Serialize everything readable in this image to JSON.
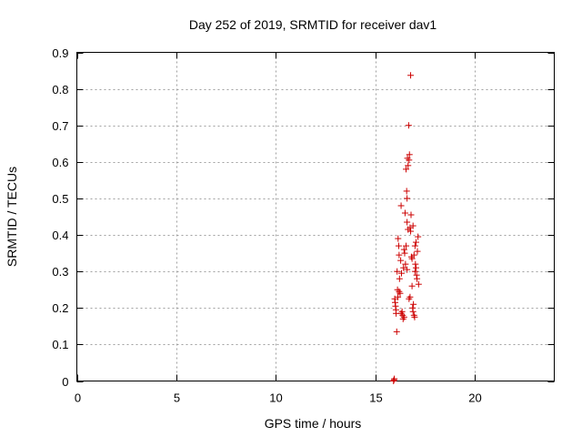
{
  "chart_data": {
    "type": "scatter",
    "title": "Day 252 of 2019, SRMTID for receiver dav1",
    "xlabel": "GPS time / hours",
    "ylabel": "SRMTID / TECUs",
    "xlim": [
      0,
      24
    ],
    "ylim": [
      0,
      0.9
    ],
    "xticks": [
      0,
      5,
      10,
      15,
      20
    ],
    "xtick_labels": [
      "0",
      "5",
      "10",
      "15",
      "20"
    ],
    "yticks": [
      0,
      0.1,
      0.2,
      0.3,
      0.4,
      0.5,
      0.6,
      0.7,
      0.8,
      0.9
    ],
    "ytick_labels": [
      "0",
      "0.1",
      "0.2",
      "0.3",
      "0.4",
      "0.5",
      "0.6",
      "0.7",
      "0.8",
      "0.9"
    ],
    "grid": true,
    "marker": "+",
    "marker_color": "#cc0000",
    "series": [
      {
        "name": "dav1",
        "points": [
          [
            15.92,
            0.0
          ],
          [
            15.94,
            0.003
          ],
          [
            15.96,
            0.006
          ],
          [
            15.98,
            0.225
          ],
          [
            16.0,
            0.215
          ],
          [
            16.02,
            0.205
          ],
          [
            16.04,
            0.195
          ],
          [
            16.05,
            0.185
          ],
          [
            16.08,
            0.135
          ],
          [
            16.1,
            0.3
          ],
          [
            16.12,
            0.25
          ],
          [
            16.14,
            0.23
          ],
          [
            16.15,
            0.39
          ],
          [
            16.18,
            0.37
          ],
          [
            16.2,
            0.345
          ],
          [
            16.22,
            0.28
          ],
          [
            16.25,
            0.24
          ],
          [
            16.28,
            0.33
          ],
          [
            16.3,
            0.48
          ],
          [
            16.32,
            0.295
          ],
          [
            16.35,
            0.19
          ],
          [
            16.38,
            0.18
          ],
          [
            16.4,
            0.17
          ],
          [
            16.42,
            0.31
          ],
          [
            16.45,
            0.36
          ],
          [
            16.48,
            0.35
          ],
          [
            16.5,
            0.46
          ],
          [
            16.52,
            0.32
          ],
          [
            16.55,
            0.58
          ],
          [
            16.58,
            0.52
          ],
          [
            16.6,
            0.5
          ],
          [
            16.62,
            0.61
          ],
          [
            16.65,
            0.59
          ],
          [
            16.68,
            0.7
          ],
          [
            16.7,
            0.605
          ],
          [
            16.72,
            0.62
          ],
          [
            16.75,
            0.42
          ],
          [
            16.78,
            0.41
          ],
          [
            16.8,
            0.455
          ],
          [
            16.82,
            0.34
          ],
          [
            16.85,
            0.335
          ],
          [
            16.88,
            0.2
          ],
          [
            16.9,
            0.19
          ],
          [
            16.92,
            0.21
          ],
          [
            16.95,
            0.18
          ],
          [
            16.98,
            0.175
          ],
          [
            17.0,
            0.37
          ],
          [
            17.02,
            0.32
          ],
          [
            17.05,
            0.31
          ],
          [
            17.08,
            0.29
          ],
          [
            17.1,
            0.28
          ],
          [
            17.12,
            0.355
          ],
          [
            17.15,
            0.395
          ],
          [
            17.18,
            0.265
          ],
          [
            16.78,
            0.837
          ],
          [
            16.9,
            0.425
          ],
          [
            16.6,
            0.305
          ],
          [
            16.7,
            0.225
          ],
          [
            16.85,
            0.26
          ],
          [
            16.45,
            0.175
          ],
          [
            16.3,
            0.185
          ],
          [
            16.95,
            0.345
          ],
          [
            17.05,
            0.38
          ],
          [
            16.6,
            0.435
          ],
          [
            16.75,
            0.23
          ],
          [
            16.2,
            0.245
          ],
          [
            16.55,
            0.37
          ],
          [
            16.65,
            0.415
          ],
          [
            17.0,
            0.3
          ]
        ]
      }
    ]
  }
}
